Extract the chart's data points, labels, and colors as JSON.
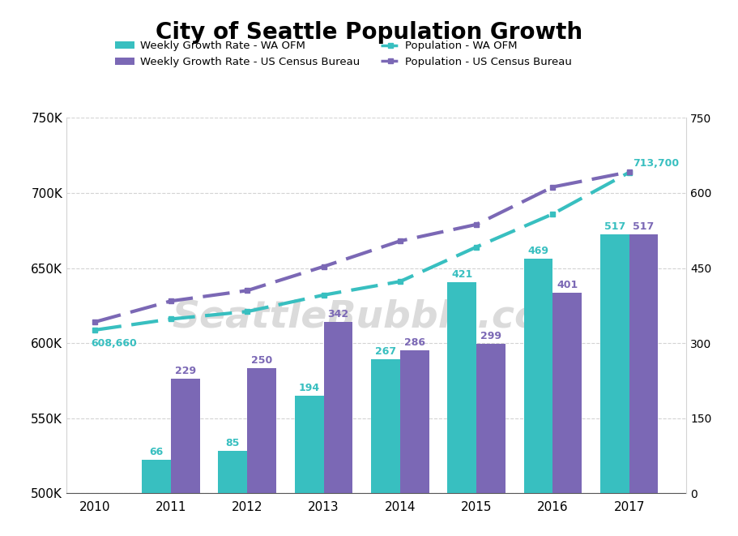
{
  "title": "City of Seattle Population Growth",
  "years": [
    2010,
    2011,
    2012,
    2013,
    2014,
    2015,
    2016,
    2017
  ],
  "bar_ofm": [
    null,
    66,
    85,
    194,
    267,
    421,
    469,
    517
  ],
  "bar_census": [
    null,
    229,
    250,
    342,
    286,
    299,
    401,
    517
  ],
  "pop_ofm": [
    608660,
    616000,
    621000,
    632000,
    641000,
    664000,
    686000,
    713700
  ],
  "pop_census": [
    614000,
    628000,
    635000,
    651000,
    668000,
    679000,
    704000,
    714000
  ],
  "color_ofm": "#38bfc0",
  "color_census": "#7B68B5",
  "watermark": "SeattleBubble.com",
  "ylim_left": [
    500000,
    750000
  ],
  "ylim_right": [
    0,
    750
  ],
  "yticks_left": [
    500000,
    550000,
    600000,
    650000,
    700000,
    750000
  ],
  "yticks_right": [
    0,
    150,
    300,
    450,
    600,
    750
  ],
  "pop_ofm_label": "608,660",
  "pop_last_label": "713,700",
  "background_color": "#ffffff",
  "bar_width": 0.38,
  "legend_items": [
    {
      "type": "bar",
      "color": "#38bfc0",
      "label": "Weekly Growth Rate - WA OFM"
    },
    {
      "type": "bar",
      "color": "#7B68B5",
      "label": "Weekly Growth Rate - US Census Bureau"
    },
    {
      "type": "line",
      "color": "#38bfc0",
      "label": "Population - WA OFM"
    },
    {
      "type": "line",
      "color": "#7B68B5",
      "label": "Population - US Census Bureau"
    }
  ]
}
